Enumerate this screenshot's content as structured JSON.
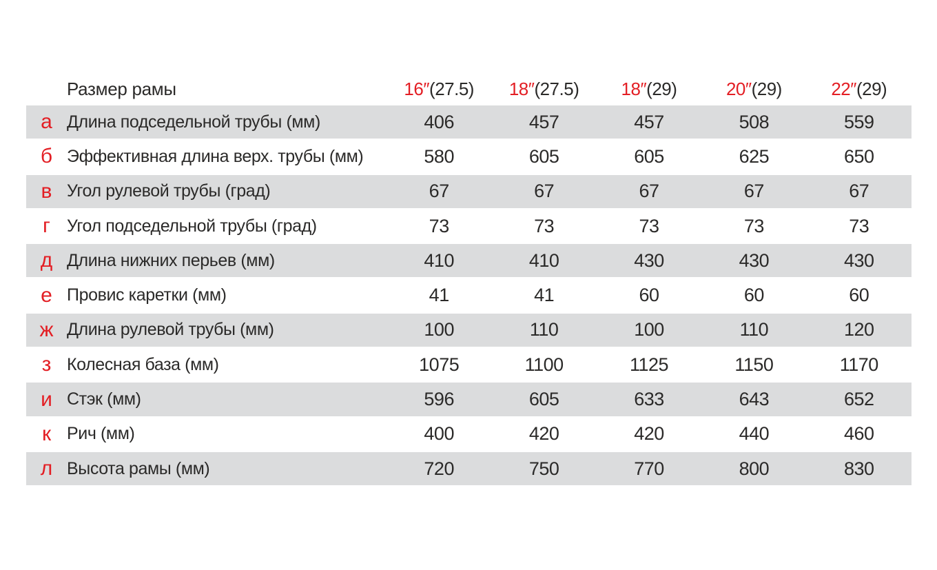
{
  "colors": {
    "accent_red": "#e31e24",
    "text_black": "#2b2a29",
    "row_shade_gray": "#dbdcdd",
    "background": "#ffffff"
  },
  "table": {
    "corner_label": "Размер рамы",
    "columns": [
      {
        "size": "16″",
        "wheel": "(27.5)"
      },
      {
        "size": "18″",
        "wheel": "(27.5)"
      },
      {
        "size": "18″",
        "wheel": "(29)"
      },
      {
        "size": "20″",
        "wheel": "(29)"
      },
      {
        "size": "22″",
        "wheel": "(29)"
      }
    ],
    "rows": [
      {
        "letter": "а",
        "label": "Длина подседельной трубы (мм)",
        "values": [
          "406",
          "457",
          "457",
          "508",
          "559"
        ]
      },
      {
        "letter": "б",
        "label": "Эффективная длина верх. трубы (мм)",
        "values": [
          "580",
          "605",
          "605",
          "625",
          "650"
        ]
      },
      {
        "letter": "в",
        "label": "Угол рулевой трубы (град)",
        "values": [
          "67",
          "67",
          "67",
          "67",
          "67"
        ]
      },
      {
        "letter": "г",
        "label": "Угол подседельной трубы (град)",
        "values": [
          "73",
          "73",
          "73",
          "73",
          "73"
        ]
      },
      {
        "letter": "д",
        "label": "Длина нижних перьев (мм)",
        "values": [
          "410",
          "410",
          "430",
          "430",
          "430"
        ]
      },
      {
        "letter": "е",
        "label": "Провис каретки (мм)",
        "values": [
          "41",
          "41",
          "60",
          "60",
          "60"
        ]
      },
      {
        "letter": "ж",
        "label": "Длина рулевой трубы (мм)",
        "values": [
          "100",
          "110",
          "100",
          "110",
          "120"
        ]
      },
      {
        "letter": "з",
        "label": "Колесная база (мм)",
        "values": [
          "1075",
          "1100",
          "1125",
          "1150",
          "1170"
        ]
      },
      {
        "letter": "и",
        "label": "Стэк (мм)",
        "values": [
          "596",
          "605",
          "633",
          "643",
          "652"
        ]
      },
      {
        "letter": "к",
        "label": "Рич (мм)",
        "values": [
          "400",
          "420",
          "420",
          "440",
          "460"
        ]
      },
      {
        "letter": "л",
        "label": "Высота рамы (мм)",
        "values": [
          "720",
          "750",
          "770",
          "800",
          "830"
        ]
      }
    ]
  },
  "chart_data": {
    "type": "table",
    "title": "Размер рамы",
    "columns": [
      "16″(27.5)",
      "18″(27.5)",
      "18″(29)",
      "20″(29)",
      "22″(29)"
    ],
    "rows": [
      {
        "index_letter": "а",
        "parameter": "Длина подседельной трубы (мм)",
        "values": [
          406,
          457,
          457,
          508,
          559
        ]
      },
      {
        "index_letter": "б",
        "parameter": "Эффективная длина верх. трубы (мм)",
        "values": [
          580,
          605,
          605,
          625,
          650
        ]
      },
      {
        "index_letter": "в",
        "parameter": "Угол рулевой трубы (град)",
        "values": [
          67,
          67,
          67,
          67,
          67
        ]
      },
      {
        "index_letter": "г",
        "parameter": "Угол подседельной трубы (град)",
        "values": [
          73,
          73,
          73,
          73,
          73
        ]
      },
      {
        "index_letter": "д",
        "parameter": "Длина нижних перьев (мм)",
        "values": [
          410,
          410,
          430,
          430,
          430
        ]
      },
      {
        "index_letter": "е",
        "parameter": "Провис каретки (мм)",
        "values": [
          41,
          41,
          60,
          60,
          60
        ]
      },
      {
        "index_letter": "ж",
        "parameter": "Длина рулевой трубы (мм)",
        "values": [
          100,
          110,
          100,
          110,
          120
        ]
      },
      {
        "index_letter": "з",
        "parameter": "Колесная база (мм)",
        "values": [
          1075,
          1100,
          1125,
          1150,
          1170
        ]
      },
      {
        "index_letter": "и",
        "parameter": "Стэк (мм)",
        "values": [
          596,
          605,
          633,
          643,
          652
        ]
      },
      {
        "index_letter": "к",
        "parameter": "Рич (мм)",
        "values": [
          400,
          420,
          420,
          440,
          460
        ]
      },
      {
        "index_letter": "л",
        "parameter": "Высота рамы (мм)",
        "values": [
          720,
          750,
          770,
          800,
          830
        ]
      }
    ],
    "layout": {
      "row_striping": "alternating gray starting at first data row",
      "index_letter_color": "#e31e24",
      "header_size_color": "#e31e24",
      "header_wheel_color": "#2b2a29"
    }
  }
}
